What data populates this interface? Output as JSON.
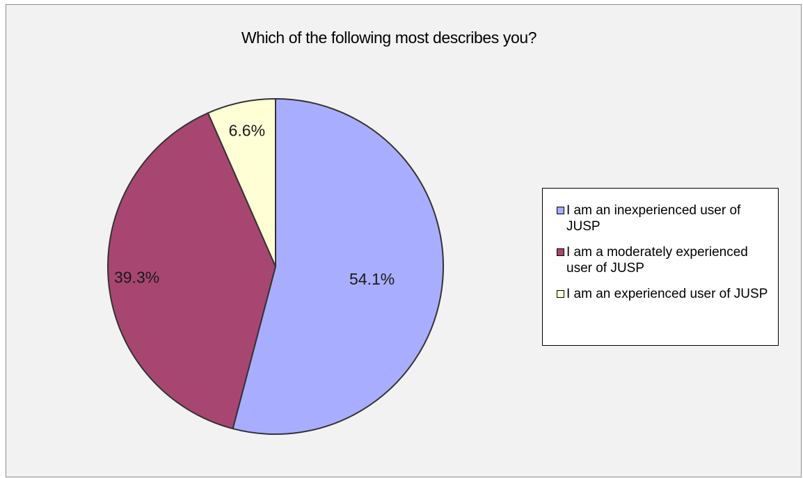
{
  "chart_data": {
    "type": "pie",
    "title": "Which of the following most describes you?",
    "categories": [
      "I am an inexperienced user of JUSP",
      "I am a moderately experienced user of JUSP",
      "I am an experienced user of JUSP"
    ],
    "values": [
      54.1,
      39.3,
      6.6
    ],
    "value_labels": [
      "54.1%",
      "39.3%",
      "6.6%"
    ],
    "colors": [
      "#a9adff",
      "#a84672",
      "#ffffd6"
    ],
    "legend_position": "right",
    "start_angle": "12 o'clock",
    "direction": "clockwise"
  }
}
